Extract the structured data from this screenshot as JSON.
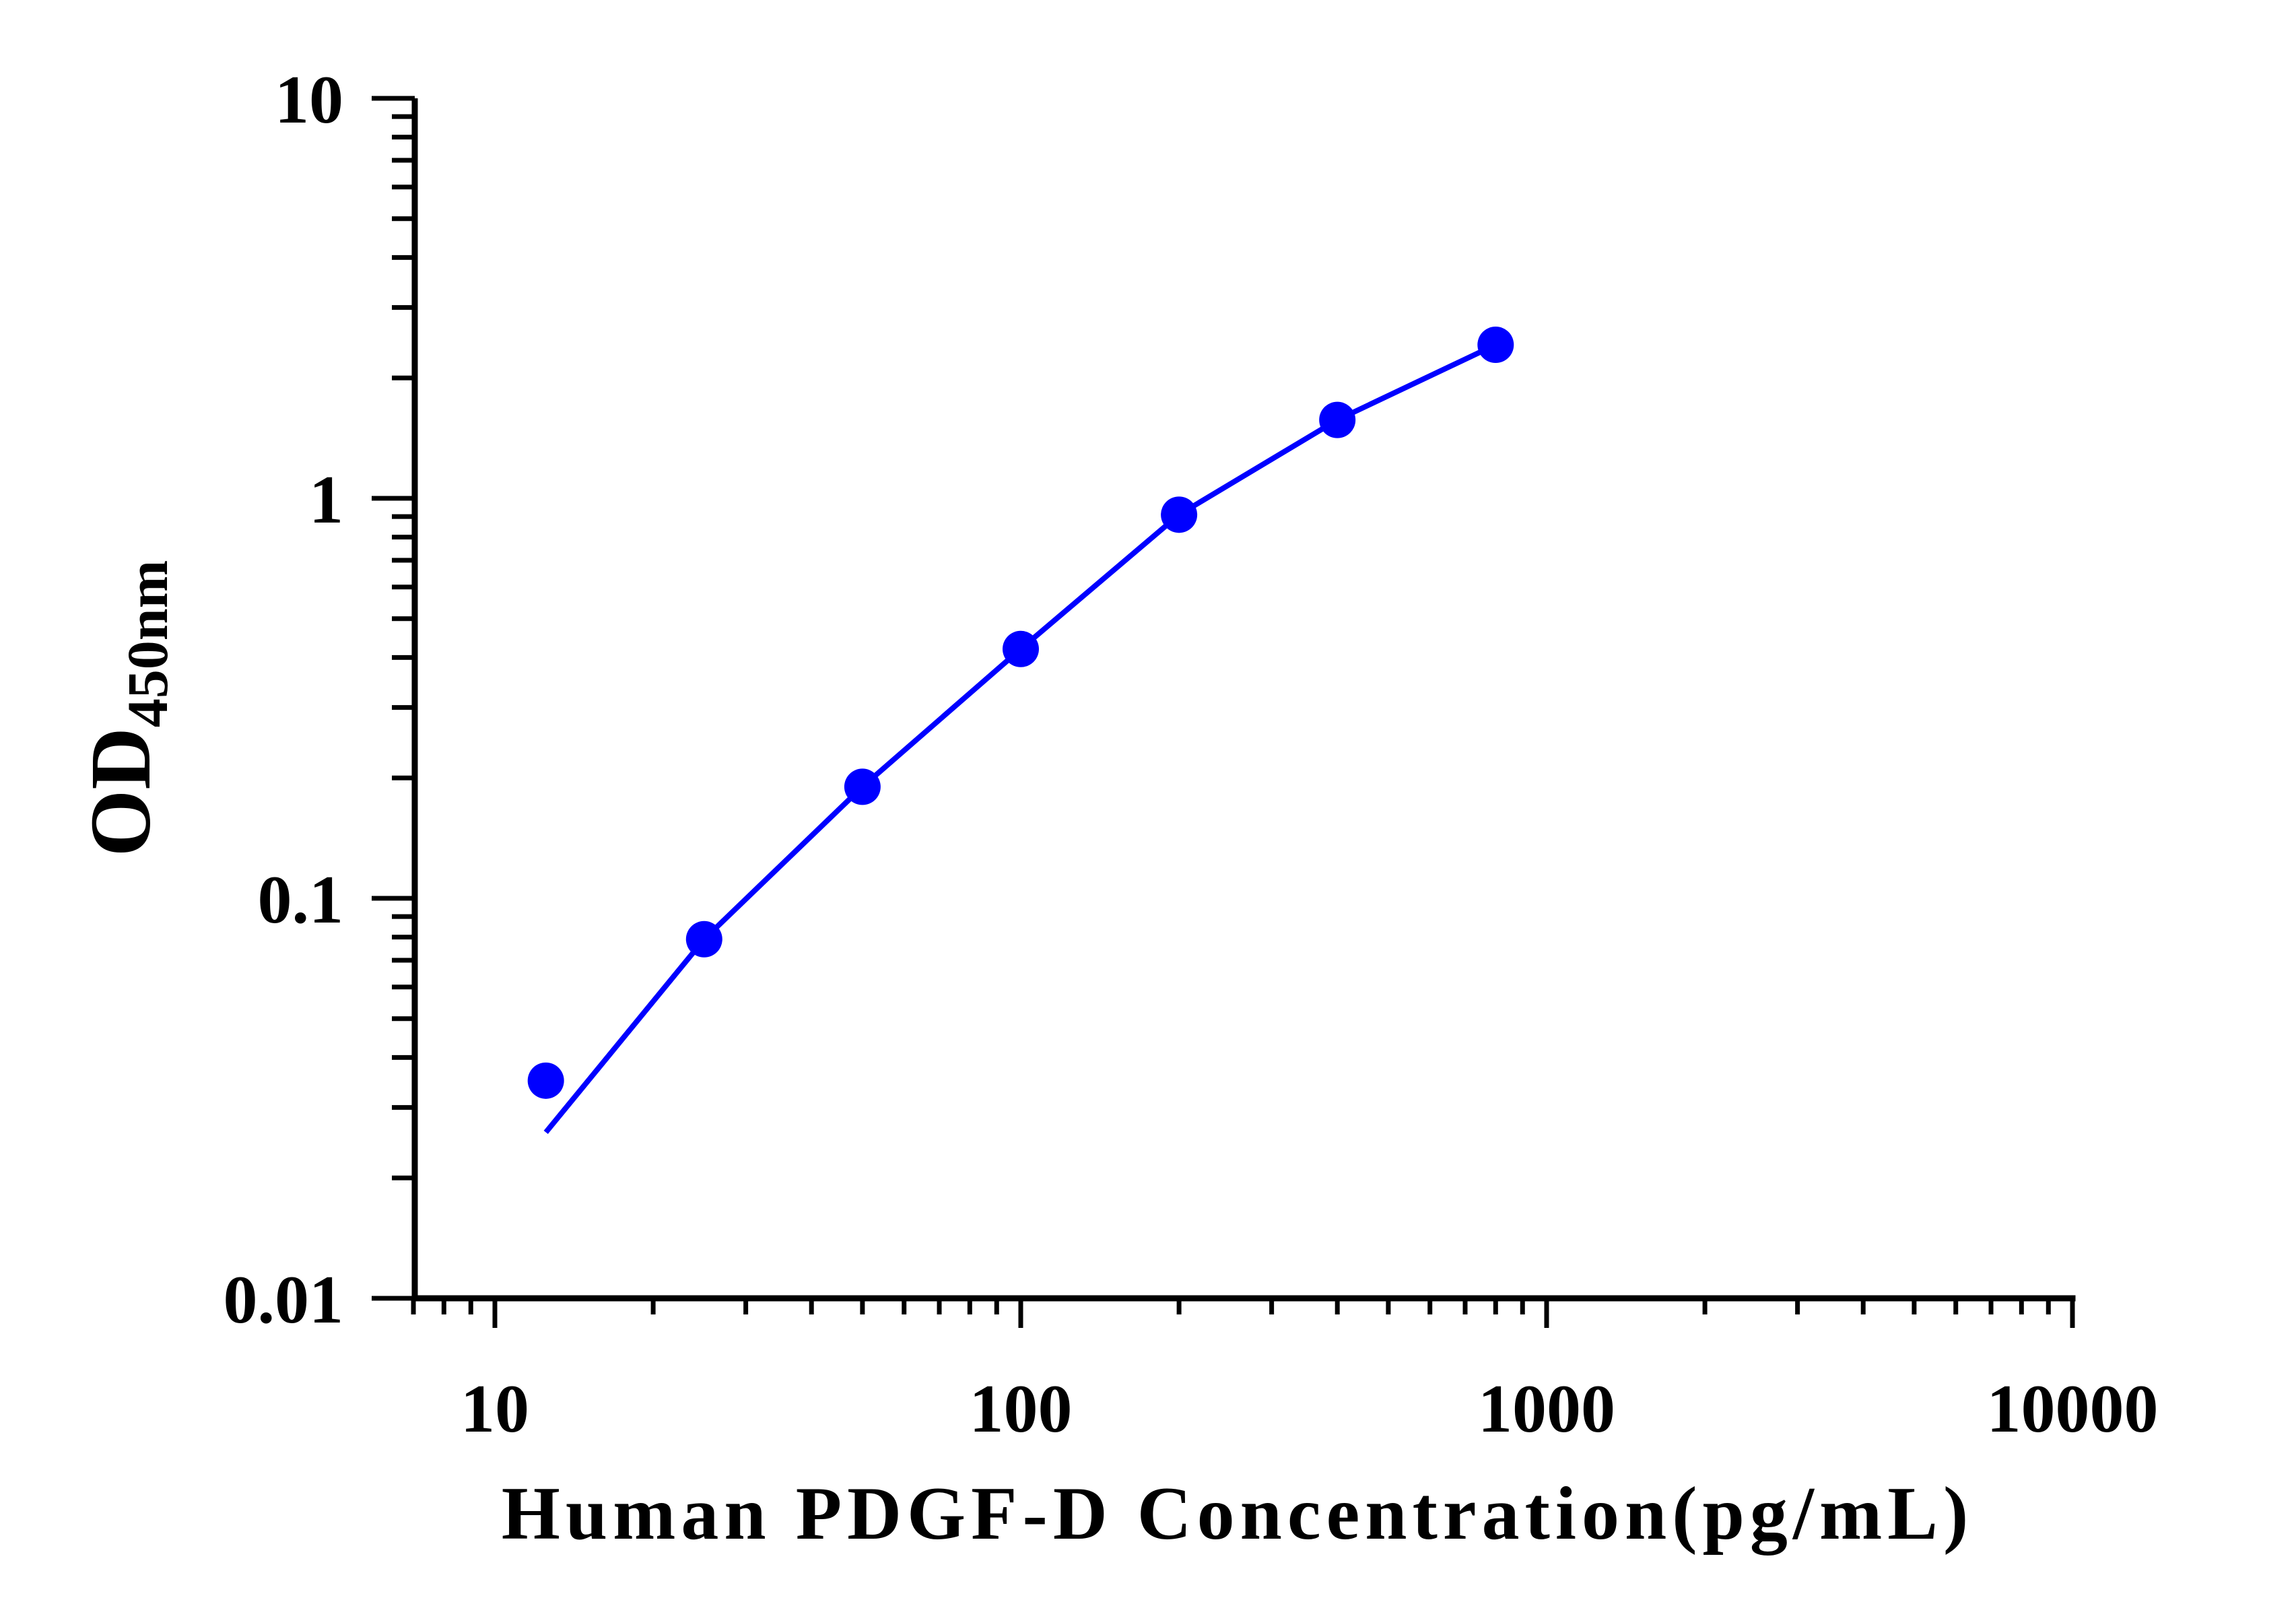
{
  "chart_data": {
    "type": "scatter",
    "x_scale": "log",
    "y_scale": "log",
    "xlim": [
      7,
      10000
    ],
    "ylim": [
      0.01,
      10
    ],
    "xlabel": "Human PDGF-D Concentration(pg/mL)",
    "ylabel": {
      "main": "OD",
      "subscript": "450nm"
    },
    "x_ticks": [
      10,
      100,
      1000,
      10000
    ],
    "x_tick_labels": [
      "10",
      "100",
      "1000",
      "10000"
    ],
    "y_ticks": [
      0.01,
      0.1,
      1,
      10
    ],
    "y_tick_labels": [
      "0.01",
      "0.1",
      "1",
      "10"
    ],
    "grid": false,
    "legend": "none",
    "series": [
      {
        "marker": "filled-circle",
        "color": "#0000ff",
        "x": [
          12.5,
          25,
          50,
          100,
          200,
          400,
          800
        ],
        "y": [
          0.035,
          0.079,
          0.19,
          0.42,
          0.91,
          1.57,
          2.42
        ]
      }
    ],
    "fit_curve": {
      "color": "#0000ff",
      "x": [
        12.5,
        25,
        50,
        100,
        200,
        400,
        800
      ],
      "y": [
        0.026,
        0.079,
        0.19,
        0.42,
        0.91,
        1.57,
        2.42
      ]
    }
  }
}
